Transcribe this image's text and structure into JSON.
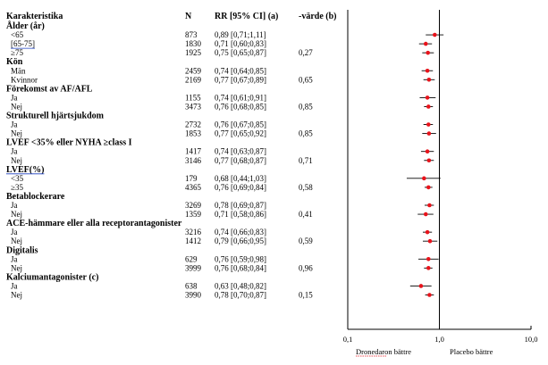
{
  "header": {
    "characteristic": "Karakteristika",
    "n": "N",
    "rr": "RR [95% CI] (a)",
    "pvalue": "-värde (b)"
  },
  "rows": [
    {
      "label": "Ålder (år)",
      "type": "group"
    },
    {
      "label": "<65",
      "n": "873",
      "ci": "0,89 [0,71;1,11]",
      "p": ""
    },
    {
      "label": "[65-75]",
      "n": "1830",
      "ci": "0,71 [0,60;0,83]",
      "p": "",
      "underline": true
    },
    {
      "label": "≥75",
      "n": "1925",
      "ci": "0,75 [0,65;0,87]",
      "p": "0,27"
    },
    {
      "label": "Kön",
      "type": "group"
    },
    {
      "label": "Män",
      "n": "2459",
      "ci": "0,74 [0,64;0,85]",
      "p": ""
    },
    {
      "label": "Kvinnor",
      "n": "2169",
      "ci": "0,77 [0,67;0,89]",
      "p": "0,65"
    },
    {
      "label": "Förekomst av AF/AFL",
      "type": "group"
    },
    {
      "label": "Ja",
      "n": "1155",
      "ci": "0,74 [0,61;0,91]",
      "p": ""
    },
    {
      "label": "Nej",
      "n": "3473",
      "ci": "0,76 [0,68;0,85]",
      "p": "0,85"
    },
    {
      "label": "Strukturell hjärtsjukdom",
      "type": "group"
    },
    {
      "label": "Ja",
      "n": "2732",
      "ci": "0,76 [0,67;0,85]",
      "p": ""
    },
    {
      "label": "Nej",
      "n": "1853",
      "ci": "0,77 [0,65;0,92]",
      "p": "0,85"
    },
    {
      "label": "LVEF <35% eller NYHA ≥class I",
      "type": "group"
    },
    {
      "label": "Ja",
      "n": "1417",
      "ci": "0,74 [0,63;0,87]",
      "p": ""
    },
    {
      "label": "Nej",
      "n": "3146",
      "ci": "0,77 [0,68;0,87]",
      "p": "0,71"
    },
    {
      "label": "LVEF(%)",
      "type": "group",
      "underline": true
    },
    {
      "label": "<35",
      "n": "179",
      "ci": "0,68 [0,44;1,03]",
      "p": ""
    },
    {
      "label": "≥35",
      "n": "4365",
      "ci": "0,76 [0,69;0,84]",
      "p": "0,58"
    },
    {
      "label": "Betablockerare",
      "type": "group"
    },
    {
      "label": "Ja",
      "n": "3269",
      "ci": "0,78 [0,69;0,87]",
      "p": ""
    },
    {
      "label": "Nej",
      "n": "1359",
      "ci": "0,71 [0,58;0,86]",
      "p": "0,41"
    },
    {
      "label": "ACE-hämmare eller alla receptorantagonister",
      "type": "group"
    },
    {
      "label": "Ja",
      "n": "3216",
      "ci": "0,74 [0,66;0,83]",
      "p": ""
    },
    {
      "label": "Nej",
      "n": "1412",
      "ci": "0,79 [0,66;0,95]",
      "p": "0,59"
    },
    {
      "label": "Digitalis",
      "type": "group"
    },
    {
      "label": "Ja",
      "n": "629",
      "ci": "0,76 [0,59;0,98]",
      "p": ""
    },
    {
      "label": "Nej",
      "n": "3999",
      "ci": "0,76 [0,68;0,84]",
      "p": "0,96"
    },
    {
      "label": "Kalciumantagonister (c)",
      "type": "group"
    },
    {
      "label": "Ja",
      "n": "638",
      "ci": "0,63 [0,48;0,82]",
      "p": ""
    },
    {
      "label": "Nej",
      "n": "3990",
      "ci": "0,78 [0,70;0,87]",
      "p": "0,15"
    }
  ],
  "chart_data": {
    "type": "scatter",
    "subtype": "forest-plot",
    "x_scale": "log",
    "xlim": [
      0.1,
      10.0
    ],
    "xticks": [
      "0,1",
      "1,0",
      "10,0"
    ],
    "xtick_values": [
      0.1,
      1.0,
      10.0
    ],
    "reference_line": 1.0,
    "marker_color": "#e8131b",
    "left_label": "Dronedaron bättre",
    "right_label": "Placebo bättre",
    "points": [
      {
        "y": "<65",
        "rr": 0.89,
        "lo": 0.71,
        "hi": 1.11
      },
      {
        "y": "[65-75]",
        "rr": 0.71,
        "lo": 0.6,
        "hi": 0.83
      },
      {
        "y": "≥75",
        "rr": 0.75,
        "lo": 0.65,
        "hi": 0.87
      },
      {
        "y": "Män",
        "rr": 0.74,
        "lo": 0.64,
        "hi": 0.85
      },
      {
        "y": "Kvinnor",
        "rr": 0.77,
        "lo": 0.67,
        "hi": 0.89
      },
      {
        "y": "AF/AFL Ja",
        "rr": 0.74,
        "lo": 0.61,
        "hi": 0.91
      },
      {
        "y": "AF/AFL Nej",
        "rr": 0.76,
        "lo": 0.68,
        "hi": 0.85
      },
      {
        "y": "Hjärtsjukdom Ja",
        "rr": 0.76,
        "lo": 0.67,
        "hi": 0.85
      },
      {
        "y": "Hjärtsjukdom Nej",
        "rr": 0.77,
        "lo": 0.65,
        "hi": 0.92
      },
      {
        "y": "NYHA Ja",
        "rr": 0.74,
        "lo": 0.63,
        "hi": 0.87
      },
      {
        "y": "NYHA Nej",
        "rr": 0.77,
        "lo": 0.68,
        "hi": 0.87
      },
      {
        "y": "<35",
        "rr": 0.68,
        "lo": 0.44,
        "hi": 1.03
      },
      {
        "y": "≥35",
        "rr": 0.76,
        "lo": 0.69,
        "hi": 0.84
      },
      {
        "y": "Betablockerare Ja",
        "rr": 0.78,
        "lo": 0.69,
        "hi": 0.87
      },
      {
        "y": "Betablockerare Nej",
        "rr": 0.71,
        "lo": 0.58,
        "hi": 0.86
      },
      {
        "y": "ACE Ja",
        "rr": 0.74,
        "lo": 0.66,
        "hi": 0.83
      },
      {
        "y": "ACE Nej",
        "rr": 0.79,
        "lo": 0.66,
        "hi": 0.95
      },
      {
        "y": "Digitalis Ja",
        "rr": 0.76,
        "lo": 0.59,
        "hi": 0.98
      },
      {
        "y": "Digitalis Nej",
        "rr": 0.76,
        "lo": 0.68,
        "hi": 0.84
      },
      {
        "y": "Kalcium Ja",
        "rr": 0.63,
        "lo": 0.48,
        "hi": 0.82
      },
      {
        "y": "Kalcium Nej",
        "rr": 0.78,
        "lo": 0.7,
        "hi": 0.87
      }
    ]
  }
}
